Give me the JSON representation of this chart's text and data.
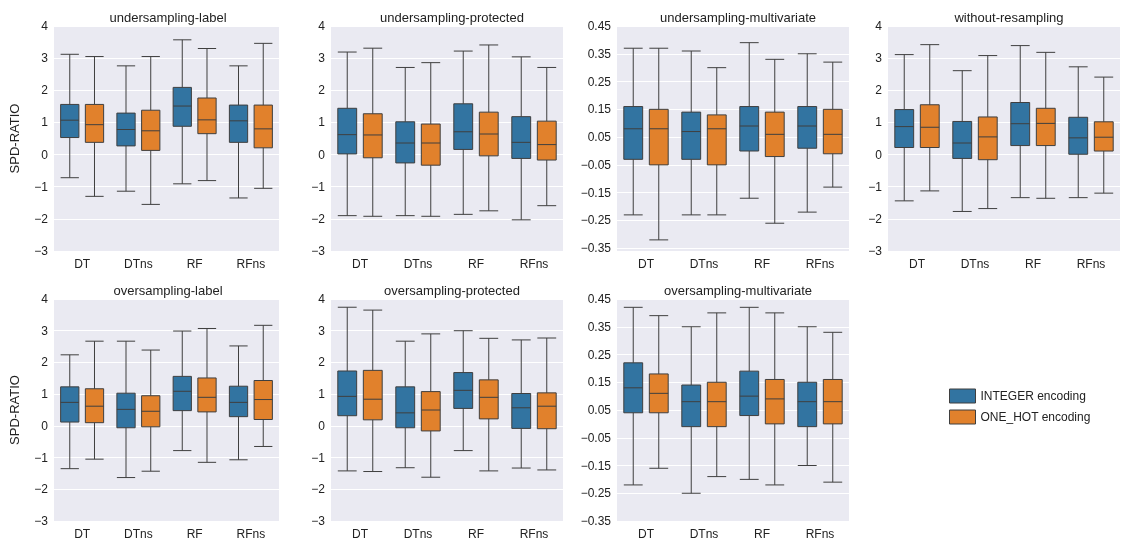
{
  "chart_data": [
    {
      "type": "box",
      "title": "undersampling-label",
      "ylabel": "SPD-RATIO",
      "categories": [
        "DT",
        "DTns",
        "RF",
        "RFns"
      ],
      "ylim": [
        -3,
        4
      ],
      "yticks": [
        -3,
        -2,
        -1,
        0,
        1,
        2,
        3,
        4
      ],
      "grid": "y",
      "series": [
        {
          "color": "#3274a1",
          "boxes": [
            {
              "low": -0.72,
              "q1": 0.53,
              "median": 1.07,
              "q3": 1.56,
              "high": 3.12
            },
            {
              "low": -1.14,
              "q1": 0.27,
              "median": 0.78,
              "q3": 1.29,
              "high": 2.76
            },
            {
              "low": -0.91,
              "q1": 0.88,
              "median": 1.51,
              "q3": 2.09,
              "high": 3.57
            },
            {
              "low": -1.35,
              "q1": 0.38,
              "median": 1.05,
              "q3": 1.54,
              "high": 2.76
            }
          ]
        },
        {
          "color": "#e1812c",
          "boxes": [
            {
              "low": -1.3,
              "q1": 0.38,
              "median": 0.93,
              "q3": 1.56,
              "high": 3.05
            },
            {
              "low": -1.55,
              "q1": 0.13,
              "median": 0.74,
              "q3": 1.38,
              "high": 3.05
            },
            {
              "low": -0.81,
              "q1": 0.65,
              "median": 1.08,
              "q3": 1.76,
              "high": 3.3
            },
            {
              "low": -1.05,
              "q1": 0.21,
              "median": 0.8,
              "q3": 1.54,
              "high": 3.46
            }
          ]
        }
      ]
    },
    {
      "type": "box",
      "title": "undersampling-protected",
      "categories": [
        "DT",
        "DTns",
        "RF",
        "RFns"
      ],
      "ylim": [
        -3,
        4
      ],
      "yticks": [
        -3,
        -2,
        -1,
        0,
        1,
        2,
        3,
        4
      ],
      "grid": "y",
      "series": [
        {
          "color": "#3274a1",
          "boxes": [
            {
              "low": -1.9,
              "q1": 0.02,
              "median": 0.62,
              "q3": 1.44,
              "high": 3.19
            },
            {
              "low": -1.9,
              "q1": -0.26,
              "median": 0.36,
              "q3": 1.02,
              "high": 2.71
            },
            {
              "low": -1.86,
              "q1": 0.16,
              "median": 0.71,
              "q3": 1.58,
              "high": 3.22
            },
            {
              "low": -2.03,
              "q1": -0.12,
              "median": 0.38,
              "q3": 1.18,
              "high": 3.04
            }
          ]
        },
        {
          "color": "#e1812c",
          "boxes": [
            {
              "low": -1.92,
              "q1": -0.1,
              "median": 0.61,
              "q3": 1.27,
              "high": 3.31
            },
            {
              "low": -1.92,
              "q1": -0.33,
              "median": 0.36,
              "q3": 0.95,
              "high": 2.86
            },
            {
              "low": -1.75,
              "q1": -0.04,
              "median": 0.64,
              "q3": 1.32,
              "high": 3.41
            },
            {
              "low": -1.59,
              "q1": -0.17,
              "median": 0.31,
              "q3": 1.04,
              "high": 2.71
            }
          ]
        }
      ]
    },
    {
      "type": "box",
      "title": "undersampling-multivariate",
      "categories": [
        "DT",
        "DTns",
        "RF",
        "RFns"
      ],
      "ylim": [
        -0.36,
        0.45
      ],
      "yticks": [
        -0.35,
        -0.25,
        -0.15,
        -0.05,
        0.05,
        0.15,
        0.25,
        0.35,
        0.45
      ],
      "grid": "y",
      "series": [
        {
          "color": "#3274a1",
          "boxes": [
            {
              "low": -0.23,
              "q1": -0.03,
              "median": 0.08,
              "q3": 0.16,
              "high": 0.37
            },
            {
              "low": -0.23,
              "q1": -0.03,
              "median": 0.07,
              "q3": 0.14,
              "high": 0.36
            },
            {
              "low": -0.17,
              "q1": 0.0,
              "median": 0.09,
              "q3": 0.16,
              "high": 0.39
            },
            {
              "low": -0.22,
              "q1": 0.01,
              "median": 0.09,
              "q3": 0.16,
              "high": 0.35
            }
          ]
        },
        {
          "color": "#e1812c",
          "boxes": [
            {
              "low": -0.32,
              "q1": -0.05,
              "median": 0.08,
              "q3": 0.15,
              "high": 0.37
            },
            {
              "low": -0.23,
              "q1": -0.05,
              "median": 0.08,
              "q3": 0.13,
              "high": 0.3
            },
            {
              "low": -0.26,
              "q1": -0.02,
              "median": 0.06,
              "q3": 0.14,
              "high": 0.33
            },
            {
              "low": -0.13,
              "q1": -0.01,
              "median": 0.06,
              "q3": 0.15,
              "high": 0.32
            }
          ]
        }
      ]
    },
    {
      "type": "box",
      "title": "without-resampling",
      "categories": [
        "DT",
        "DTns",
        "RF",
        "RFns"
      ],
      "ylim": [
        -3,
        4
      ],
      "yticks": [
        -3,
        -2,
        -1,
        0,
        1,
        2,
        3,
        4
      ],
      "grid": "y",
      "series": [
        {
          "color": "#3274a1",
          "boxes": [
            {
              "low": -1.44,
              "q1": 0.22,
              "median": 0.87,
              "q3": 1.4,
              "high": 3.11
            },
            {
              "low": -1.77,
              "q1": -0.12,
              "median": 0.36,
              "q3": 1.03,
              "high": 2.61
            },
            {
              "low": -1.34,
              "q1": 0.28,
              "median": 0.96,
              "q3": 1.62,
              "high": 3.39
            },
            {
              "low": -1.34,
              "q1": 0.01,
              "median": 0.52,
              "q3": 1.16,
              "high": 2.73
            }
          ]
        },
        {
          "color": "#e1812c",
          "boxes": [
            {
              "low": -1.13,
              "q1": 0.22,
              "median": 0.85,
              "q3": 1.55,
              "high": 3.42
            },
            {
              "low": -1.68,
              "q1": -0.16,
              "median": 0.55,
              "q3": 1.17,
              "high": 3.08
            },
            {
              "low": -1.36,
              "q1": 0.28,
              "median": 0.97,
              "q3": 1.44,
              "high": 3.18
            },
            {
              "low": -1.2,
              "q1": 0.11,
              "median": 0.54,
              "q3": 1.02,
              "high": 2.41
            }
          ]
        }
      ]
    },
    {
      "type": "box",
      "title": "oversampling-label",
      "ylabel": "SPD-RATIO",
      "categories": [
        "DT",
        "DTns",
        "RF",
        "RFns"
      ],
      "ylim": [
        -3,
        4
      ],
      "yticks": [
        -3,
        -2,
        -1,
        0,
        1,
        2,
        3,
        4
      ],
      "grid": "y",
      "series": [
        {
          "color": "#3274a1",
          "boxes": [
            {
              "low": -1.35,
              "q1": 0.12,
              "median": 0.74,
              "q3": 1.23,
              "high": 2.24
            },
            {
              "low": -1.63,
              "q1": -0.06,
              "median": 0.52,
              "q3": 1.03,
              "high": 2.67
            },
            {
              "low": -0.78,
              "q1": 0.48,
              "median": 1.09,
              "q3": 1.56,
              "high": 2.99
            },
            {
              "low": -1.07,
              "q1": 0.29,
              "median": 0.74,
              "q3": 1.25,
              "high": 2.52
            }
          ]
        },
        {
          "color": "#e1812c",
          "boxes": [
            {
              "low": -1.05,
              "q1": 0.1,
              "median": 0.62,
              "q3": 1.17,
              "high": 2.67
            },
            {
              "low": -1.43,
              "q1": -0.03,
              "median": 0.46,
              "q3": 0.95,
              "high": 2.39
            },
            {
              "low": -1.15,
              "q1": 0.44,
              "median": 0.9,
              "q3": 1.51,
              "high": 3.07
            },
            {
              "low": -0.65,
              "q1": 0.2,
              "median": 0.83,
              "q3": 1.43,
              "high": 3.17
            }
          ]
        }
      ]
    },
    {
      "type": "box",
      "title": "oversampling-protected",
      "categories": [
        "DT",
        "DTns",
        "RF",
        "RFns"
      ],
      "ylim": [
        -3,
        4
      ],
      "yticks": [
        -3,
        -2,
        -1,
        0,
        1,
        2,
        3,
        4
      ],
      "grid": "y",
      "series": [
        {
          "color": "#3274a1",
          "boxes": [
            {
              "low": -1.42,
              "q1": 0.32,
              "median": 0.93,
              "q3": 1.73,
              "high": 3.74
            },
            {
              "low": -1.32,
              "q1": -0.06,
              "median": 0.41,
              "q3": 1.23,
              "high": 2.67
            },
            {
              "low": -0.78,
              "q1": 0.55,
              "median": 1.12,
              "q3": 1.68,
              "high": 3.0
            },
            {
              "low": -1.33,
              "q1": -0.08,
              "median": 0.57,
              "q3": 1.02,
              "high": 2.71
            }
          ]
        },
        {
          "color": "#e1812c",
          "boxes": [
            {
              "low": -1.44,
              "q1": 0.19,
              "median": 0.84,
              "q3": 1.75,
              "high": 3.65
            },
            {
              "low": -1.62,
              "q1": -0.16,
              "median": 0.5,
              "q3": 1.08,
              "high": 2.9
            },
            {
              "low": -1.42,
              "q1": 0.22,
              "median": 0.9,
              "q3": 1.45,
              "high": 2.76
            },
            {
              "low": -1.39,
              "q1": -0.09,
              "median": 0.62,
              "q3": 1.04,
              "high": 2.77
            }
          ]
        }
      ]
    },
    {
      "type": "box",
      "title": "oversampling-multivariate",
      "categories": [
        "DT",
        "DTns",
        "RF",
        "RFns"
      ],
      "ylim": [
        -0.35,
        0.45
      ],
      "yticks": [
        -0.35,
        -0.25,
        -0.15,
        -0.05,
        0.05,
        0.15,
        0.25,
        0.35,
        0.45
      ],
      "grid": "y",
      "legend": "right",
      "series": [
        {
          "name": "INTEGER encoding",
          "color": "#3274a1",
          "boxes": [
            {
              "low": -0.22,
              "q1": 0.04,
              "median": 0.13,
              "q3": 0.22,
              "high": 0.42
            },
            {
              "low": -0.25,
              "q1": -0.01,
              "median": 0.08,
              "q3": 0.14,
              "high": 0.35
            },
            {
              "low": -0.2,
              "q1": 0.03,
              "median": 0.1,
              "q3": 0.19,
              "high": 0.42
            },
            {
              "low": -0.15,
              "q1": -0.01,
              "median": 0.08,
              "q3": 0.15,
              "high": 0.35
            }
          ]
        },
        {
          "name": "ONE_HOT encoding",
          "color": "#e1812c",
          "boxes": [
            {
              "low": -0.16,
              "q1": 0.04,
              "median": 0.11,
              "q3": 0.18,
              "high": 0.39
            },
            {
              "low": -0.19,
              "q1": -0.01,
              "median": 0.08,
              "q3": 0.15,
              "high": 0.4
            },
            {
              "low": -0.22,
              "q1": 0.0,
              "median": 0.09,
              "q3": 0.16,
              "high": 0.4
            },
            {
              "low": -0.21,
              "q1": 0.0,
              "median": 0.08,
              "q3": 0.16,
              "high": 0.33
            }
          ]
        }
      ]
    }
  ]
}
